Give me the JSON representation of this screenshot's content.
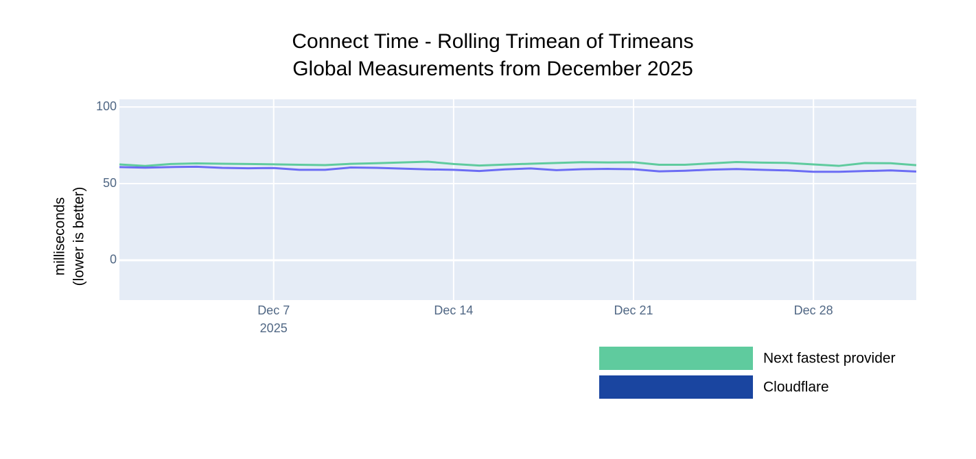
{
  "chart_data": {
    "type": "line",
    "title": "Connect Time - Rolling Trimean of Trimeans",
    "subtitle": "Global Measurements from December 2025",
    "y_label": [
      "milliseconds",
      "(lower is better)"
    ],
    "x": [
      "2025-12-01",
      "2025-12-02",
      "2025-12-03",
      "2025-12-04",
      "2025-12-05",
      "2025-12-06",
      "2025-12-07",
      "2025-12-08",
      "2025-12-09",
      "2025-12-10",
      "2025-12-11",
      "2025-12-12",
      "2025-12-13",
      "2025-12-14",
      "2025-12-15",
      "2025-12-16",
      "2025-12-17",
      "2025-12-18",
      "2025-12-19",
      "2025-12-20",
      "2025-12-21",
      "2025-12-22",
      "2025-12-23",
      "2025-12-24",
      "2025-12-25",
      "2025-12-26",
      "2025-12-27",
      "2025-12-28",
      "2025-12-29",
      "2025-12-30",
      "2025-12-31",
      "2026-01-01"
    ],
    "series": [
      {
        "name": "Next fastest provider",
        "color": "#5fcb9e",
        "legend_color": "#5fcb9e",
        "values": [
          62.5,
          61.5,
          62.8,
          63.2,
          63.0,
          62.8,
          62.6,
          62.3,
          62.1,
          62.9,
          63.3,
          63.8,
          64.3,
          62.8,
          61.8,
          62.4,
          63.0,
          63.5,
          64.0,
          63.8,
          63.9,
          62.3,
          62.3,
          63.2,
          64.1,
          63.7,
          63.5,
          62.5,
          61.6,
          63.4,
          63.3,
          62.0
        ]
      },
      {
        "name": "Cloudflare",
        "color": "#6b6cf4",
        "legend_color": "#1a45a0",
        "values": [
          60.8,
          60.4,
          60.8,
          61.0,
          60.3,
          60.0,
          60.2,
          59.0,
          59.0,
          60.5,
          60.3,
          59.8,
          59.3,
          59.0,
          58.2,
          59.3,
          59.9,
          58.8,
          59.4,
          59.6,
          59.4,
          58.0,
          58.4,
          59.1,
          59.5,
          59.0,
          58.6,
          57.7,
          57.7,
          58.2,
          58.6,
          57.9
        ]
      }
    ],
    "xlim": [
      "2025-12-01",
      "2026-01-01"
    ],
    "xticks": [
      {
        "value": "2025-12-07",
        "label": "Dec 7"
      },
      {
        "value": "2025-12-14",
        "label": "Dec 14"
      },
      {
        "value": "2025-12-21",
        "label": "Dec 21"
      },
      {
        "value": "2025-12-28",
        "label": "Dec 28"
      }
    ],
    "x_year_label": "2025",
    "ylim": [
      -26,
      105
    ],
    "yticks": [
      0,
      50,
      100
    ],
    "grid": true
  }
}
